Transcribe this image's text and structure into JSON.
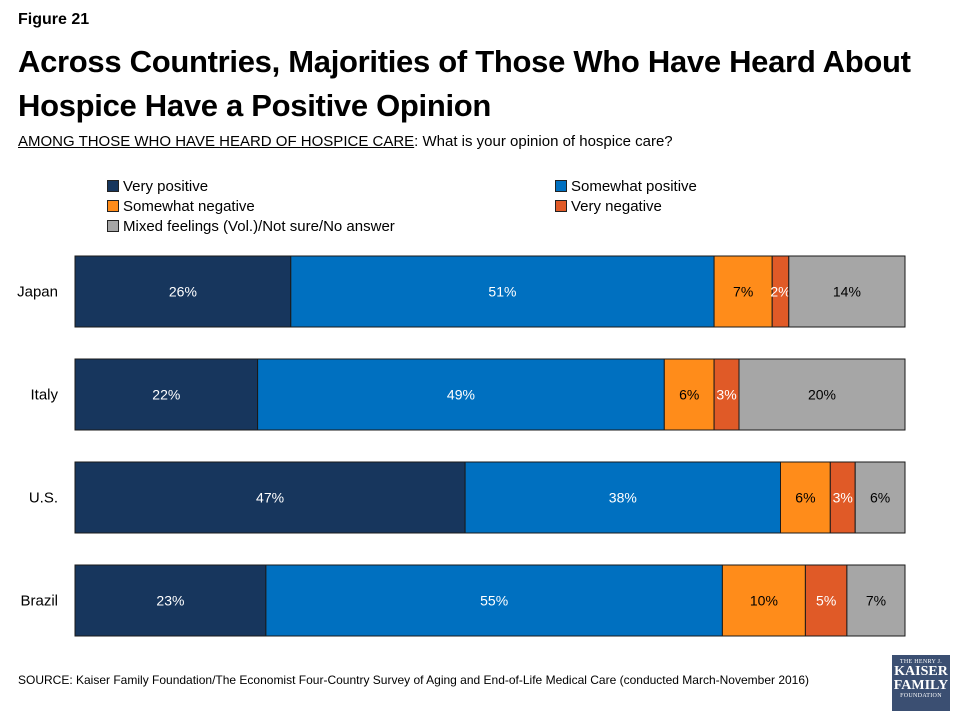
{
  "figure_label": "Figure 21",
  "title": "Across Countries, Majorities of Those Who Have Heard About Hospice Have a Positive Opinion",
  "subtitle": {
    "underlined": "AMONG THOSE WHO HAVE HEARD OF HOSPICE CARE",
    "rest": ": What is your opinion of hospice care?"
  },
  "source": "SOURCE: Kaiser Family Foundation/The Economist Four-Country Survey of Aging and End-of-Life Medical Care (conducted March-November 2016)",
  "logo": {
    "line1": "THE HENRY J.",
    "line2": "KAISER",
    "line3": "FAMILY",
    "line4": "FOUNDATION"
  },
  "chart_data": {
    "type": "bar",
    "orientation": "horizontal",
    "stacked": true,
    "grid": false,
    "legend_position": "top",
    "categories": [
      "Japan",
      "Italy",
      "U.S.",
      "Brazil"
    ],
    "series": [
      {
        "name": "Very positive",
        "color": "#17365d",
        "values": [
          26,
          22,
          47,
          23
        ],
        "labels": [
          "26%",
          "22%",
          "47%",
          "23%"
        ]
      },
      {
        "name": "Somewhat positive",
        "color": "#0070c0",
        "values": [
          51,
          49,
          38,
          55
        ],
        "labels": [
          "51%",
          "49%",
          "38%",
          "55%"
        ]
      },
      {
        "name": "Somewhat negative",
        "color": "#ff8c1a",
        "values": [
          7,
          6,
          6,
          10
        ],
        "labels": [
          "7%",
          "6%",
          "6%",
          "10%"
        ]
      },
      {
        "name": "Very negative",
        "color": "#e05a27",
        "values": [
          2,
          3,
          3,
          5
        ],
        "labels": [
          "2%",
          "3%",
          "3%",
          "5%"
        ]
      },
      {
        "name": "Mixed feelings (Vol.)/Not sure/No answer",
        "color": "#a6a6a6",
        "values": [
          14,
          20,
          6,
          7
        ],
        "labels": [
          "14%",
          "20%",
          "6%",
          "7%"
        ]
      }
    ],
    "label_colors": [
      "#ffffff",
      "#ffffff",
      "#000000",
      "#ffffff",
      "#000000"
    ]
  }
}
